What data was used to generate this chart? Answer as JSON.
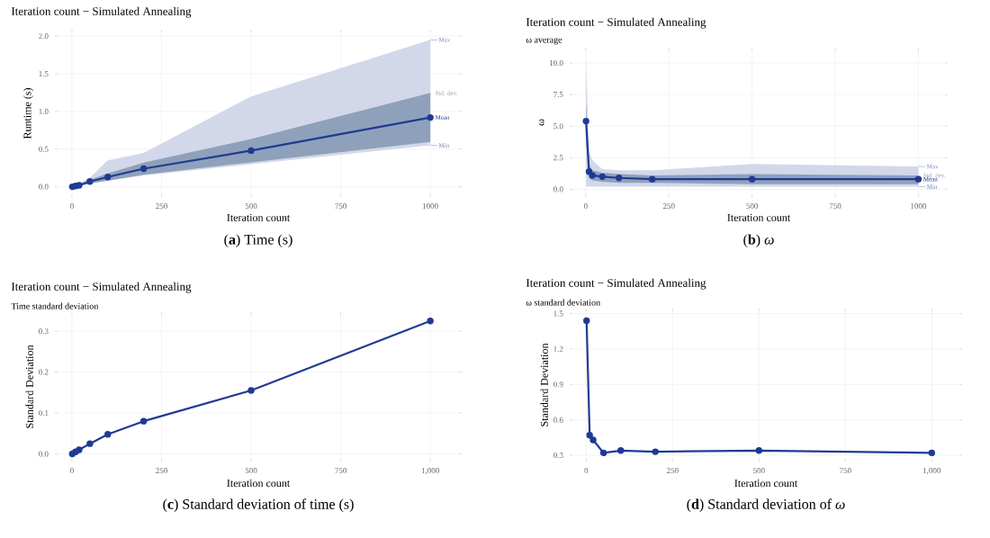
{
  "chart_data": [
    {
      "type": "line",
      "title": "Iteration count − Simulated Annealing",
      "xlabel": "Iteration count",
      "ylabel": "Runtime (s)",
      "x": [
        1,
        10,
        20,
        50,
        100,
        200,
        500,
        1000
      ],
      "series": [
        {
          "name": "Mean",
          "color": "#1f3a93",
          "values": [
            0.0,
            0.01,
            0.02,
            0.07,
            0.13,
            0.24,
            0.48,
            0.92
          ],
          "lower": [
            0.0,
            0.0,
            0.01,
            0.04,
            0.08,
            0.15,
            0.3,
            0.55
          ],
          "upper": [
            0.01,
            0.03,
            0.05,
            0.12,
            0.35,
            0.45,
            1.2,
            1.95
          ]
        },
        {
          "name": "Std. dev.",
          "color": "#8fa1ba",
          "values": [
            null,
            null,
            null,
            null,
            null,
            null,
            null,
            null
          ],
          "lower": [
            0.0,
            0.005,
            0.01,
            0.045,
            0.082,
            0.16,
            0.325,
            0.595
          ],
          "upper": [
            0.0,
            0.015,
            0.03,
            0.095,
            0.178,
            0.32,
            0.635,
            1.245
          ]
        }
      ],
      "xlim": [
        -40,
        1080
      ],
      "ylim": [
        -0.1,
        2.05
      ],
      "xticks": [
        0,
        250,
        500,
        750,
        1000
      ],
      "yticks": [
        {
          "value": 0,
          "label": "0.0"
        },
        {
          "value": 0.5,
          "label": "0.5"
        },
        {
          "value": 1,
          "label": "1.0"
        },
        {
          "value": 1.5,
          "label": "1.5"
        },
        {
          "value": 2,
          "label": "2.0"
        }
      ],
      "grid": true,
      "marker": "circle",
      "line_style": "solid",
      "annotations": [
        "Max",
        "Min",
        "(**a**) Time (s)"
      ]
    },
    {
      "type": "line",
      "title": "Iteration count − Simulated Annealing",
      "subtitle": "ω average",
      "xlabel": "Iteration count",
      "ylabel": "ω",
      "x": [
        1,
        10,
        20,
        50,
        100,
        200,
        500,
        1000
      ],
      "series": [
        {
          "name": "Mean",
          "color": "#1f3a93",
          "values": [
            5.4,
            1.4,
            1.1,
            1.0,
            0.9,
            0.8,
            0.8,
            0.8
          ],
          "lower": [
            0.2,
            0.2,
            0.2,
            0.2,
            0.2,
            0.2,
            0.2,
            0.2
          ],
          "upper": [
            10.5,
            3.0,
            2.3,
            1.6,
            1.5,
            1.5,
            2.0,
            1.8
          ]
        },
        {
          "name": "Std. dev.",
          "color": "#8fa1ba",
          "values": [
            null,
            null,
            null,
            null,
            null,
            null,
            null,
            null
          ],
          "lower": [
            4.0,
            0.9,
            0.7,
            0.6,
            0.5,
            0.5,
            0.4,
            0.4
          ],
          "upper": [
            6.8,
            1.9,
            1.5,
            1.3,
            1.2,
            1.1,
            1.2,
            1.1
          ]
        }
      ],
      "xlim": [
        -40,
        1080
      ],
      "ylim": [
        -0.4,
        11
      ],
      "xticks": [
        0,
        250,
        500,
        750,
        1000
      ],
      "yticks": [
        {
          "value": 0,
          "label": "0.0"
        },
        {
          "value": 2.5,
          "label": "2.5"
        },
        {
          "value": 5,
          "label": "5.0"
        },
        {
          "value": 7.5,
          "label": "7.5"
        },
        {
          "value": 10,
          "label": "10.0"
        }
      ],
      "grid": true,
      "marker": "circle",
      "line_style": "solid",
      "annotations": [
        "Max",
        "Min",
        "(**b**) *ω*"
      ]
    },
    {
      "type": "line",
      "title": "Iteration count − Simulated Annealing",
      "subtitle": "Time standard deviation",
      "xlabel": "Iteration count",
      "ylabel": "Standard Deviation",
      "x": [
        1,
        10,
        20,
        50,
        100,
        200,
        500,
        1000
      ],
      "series": [
        {
          "color": "#1f3a93",
          "values": [
            0.0,
            0.005,
            0.01,
            0.025,
            0.048,
            0.08,
            0.155,
            0.325
          ]
        }
      ],
      "xlim": [
        -40,
        1080
      ],
      "ylim": [
        -0.012,
        0.34
      ],
      "xticks": [
        0,
        250,
        500,
        750,
        {
          "value": 1000,
          "label": "1,000"
        }
      ],
      "yticks": [
        {
          "value": 0,
          "label": "0.0"
        },
        {
          "value": 0.1,
          "label": "0.1"
        },
        {
          "value": 0.2,
          "label": "0.2"
        },
        {
          "value": 0.3,
          "label": "0.3"
        }
      ],
      "grid": true,
      "marker": "circle",
      "line_style": "solid",
      "annotations": [
        "(**c**) Standard deviation of time (s)"
      ]
    },
    {
      "type": "line",
      "title": "Iteration count − Simulated Annealing",
      "subtitle": "ω standard deviation",
      "xlabel": "Iteration count",
      "ylabel": "Standard Deviation",
      "x": [
        1,
        10,
        20,
        50,
        100,
        200,
        500,
        1000
      ],
      "series": [
        {
          "color": "#1f3a93",
          "values": [
            1.44,
            0.47,
            0.43,
            0.32,
            0.34,
            0.33,
            0.34,
            0.32
          ]
        }
      ],
      "xlim": [
        -40,
        1080
      ],
      "ylim": [
        0.27,
        1.52
      ],
      "xticks": [
        0,
        250,
        500,
        750,
        {
          "value": 1000,
          "label": "1,000"
        }
      ],
      "yticks": [
        {
          "value": 0.3,
          "label": "0.3"
        },
        {
          "value": 0.6,
          "label": "0.6"
        },
        {
          "value": 0.9,
          "label": "0.9"
        },
        {
          "value": 1.2,
          "label": "1.2"
        },
        {
          "value": 1.5,
          "label": "1.5"
        }
      ],
      "grid": true,
      "marker": "circle",
      "line_style": "solid",
      "annotations": [
        "(**d**) Standard deviation of *ω*"
      ]
    }
  ]
}
